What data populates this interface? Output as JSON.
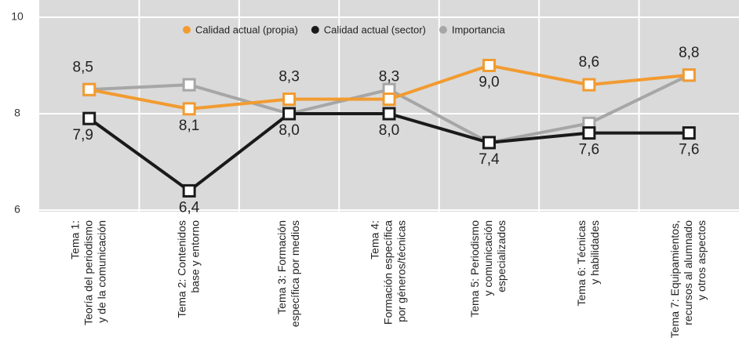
{
  "chart_data": {
    "type": "line",
    "categories": [
      [
        "Tema 1:",
        "Teoría del periodismo",
        "y de la comunicación"
      ],
      [
        "Tema 2: Contenidos",
        "base y entorno"
      ],
      [
        "Tema 3: Formación",
        "específica por medios"
      ],
      [
        "Tema 4:",
        "Formación específica",
        "por géneros/técnicas"
      ],
      [
        "Tema 5: Periodismo",
        "y comunicación",
        "especializados"
      ],
      [
        "Tema 6: Técnicas",
        "y habilidades"
      ],
      [
        "Tema 7: Equipamientos,",
        "recursos al alumnado",
        "y otros aspectos"
      ]
    ],
    "series": [
      {
        "name": "Importancia",
        "color": "#a6a6a6",
        "values": [
          8.5,
          8.6,
          8.0,
          8.5,
          7.4,
          7.8,
          8.8
        ]
      },
      {
        "name": "Calidad actual (sector)",
        "color": "#1a1a1a",
        "values": [
          7.9,
          6.4,
          8.0,
          8.0,
          7.4,
          7.6,
          7.6
        ],
        "value_labels": [
          "7,9",
          "6,4",
          "8,0",
          "8,0",
          "7,4",
          "7,6",
          "7,6"
        ]
      },
      {
        "name": "Calidad actual (propia)",
        "color": "#f29b30",
        "values": [
          8.5,
          8.1,
          8.3,
          8.3,
          9.0,
          8.6,
          8.8
        ],
        "value_labels": [
          "8,5",
          "8,1",
          "8,3",
          "8,3",
          "9,0",
          "8,6",
          "8,8"
        ]
      }
    ],
    "ylim": [
      6,
      10
    ],
    "yticks": [
      6,
      8,
      10
    ],
    "grid": true
  }
}
